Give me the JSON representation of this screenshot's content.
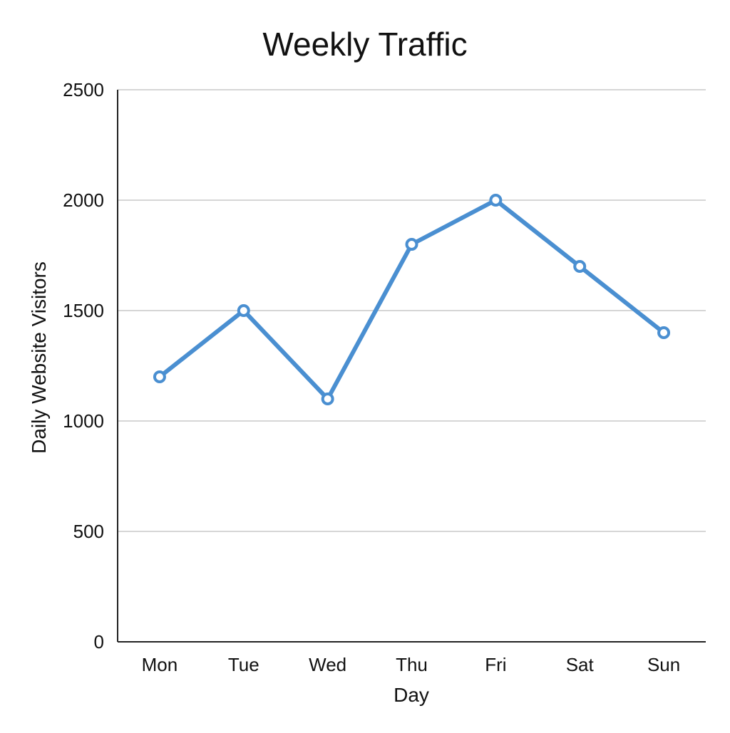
{
  "chart_data": {
    "type": "line",
    "title": "Weekly Traffic",
    "xlabel": "Day",
    "ylabel": "Daily Website Visitors",
    "categories": [
      "Mon",
      "Tue",
      "Wed",
      "Thu",
      "Fri",
      "Sat",
      "Sun"
    ],
    "series": [
      {
        "values": [
          1200,
          1500,
          1100,
          1800,
          2000,
          1700,
          1400
        ],
        "color": "#4a8fd1"
      }
    ],
    "ylim": [
      0,
      2500
    ],
    "yticks": [
      0,
      500,
      1000,
      1500,
      2000,
      2500
    ],
    "ytick_labels": [
      "0",
      "500",
      "1000",
      "1500",
      "2000",
      "2500"
    ],
    "grid": true,
    "legend": "none",
    "colors": {
      "grid": "#c8c8c8",
      "axis": "#222222",
      "marker_fill": "#ffffff"
    }
  }
}
